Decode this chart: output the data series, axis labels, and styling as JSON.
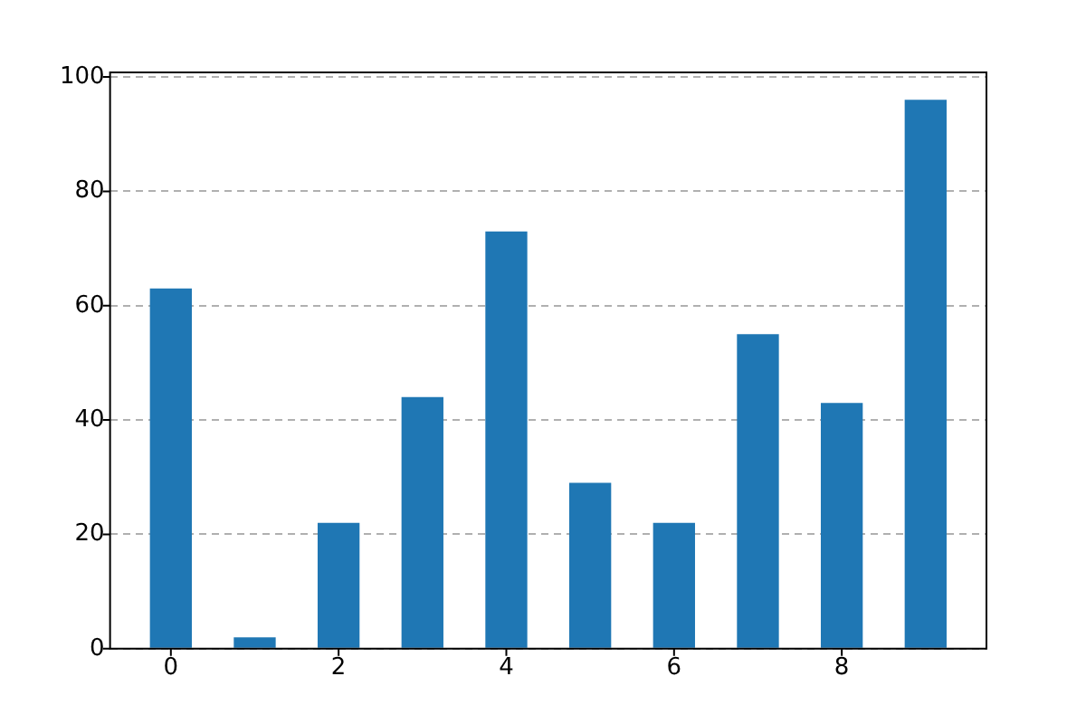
{
  "chart_data": {
    "type": "bar",
    "x": [
      0,
      1,
      2,
      3,
      4,
      5,
      6,
      7,
      8,
      9
    ],
    "values": [
      63,
      2,
      22,
      44,
      73,
      29,
      22,
      55,
      43,
      96
    ],
    "color": "#1f77b4",
    "xlim": [
      -0.725,
      9.725
    ],
    "xticks": [
      0,
      2,
      4,
      6,
      8
    ],
    "ylim": [
      0,
      100.8
    ],
    "yticks": [
      0,
      20,
      40,
      60,
      80,
      100
    ],
    "grid": "y"
  }
}
